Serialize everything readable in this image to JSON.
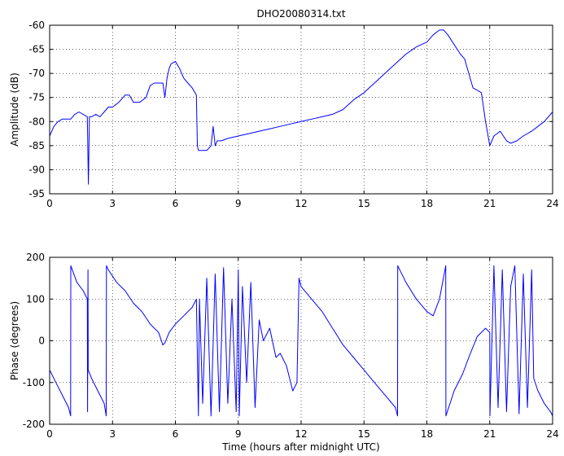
{
  "chart_data": [
    {
      "type": "line",
      "title": "DHO20080314.txt",
      "xlabel": "",
      "ylabel": "Amplitude (dB)",
      "xlim": [
        0,
        24
      ],
      "ylim": [
        -95,
        -60
      ],
      "xticks": [
        0,
        3,
        6,
        9,
        12,
        15,
        18,
        21,
        24
      ],
      "yticks": [
        -60,
        -65,
        -70,
        -75,
        -80,
        -85,
        -90,
        -95
      ],
      "grid": true,
      "line_color": "#0000ff",
      "series": [
        {
          "x": [
            0.0,
            0.2,
            0.4,
            0.6,
            0.8,
            1.0,
            1.2,
            1.4,
            1.6,
            1.8,
            1.85,
            1.9,
            2.0,
            2.2,
            2.4,
            2.6,
            2.8,
            3.0,
            3.3,
            3.6,
            3.8,
            4.0,
            4.3,
            4.6,
            4.8,
            5.0,
            5.2,
            5.4,
            5.5,
            5.6,
            5.7,
            5.8,
            6.0,
            6.2,
            6.4,
            6.6,
            6.8,
            7.0,
            7.05,
            7.1,
            7.3,
            7.5,
            7.7,
            7.8,
            7.9,
            8.0,
            8.2,
            8.5,
            9.0,
            9.5,
            10.0,
            10.5,
            11.0,
            11.5,
            12.0,
            12.5,
            13.0,
            13.5,
            14.0,
            14.5,
            15.0,
            15.5,
            16.0,
            16.5,
            17.0,
            17.5,
            18.0,
            18.3,
            18.6,
            18.8,
            19.0,
            19.3,
            19.6,
            19.8,
            20.0,
            20.2,
            20.4,
            20.6,
            20.8,
            21.0,
            21.2,
            21.5,
            21.8,
            22.0,
            22.3,
            22.6,
            23.0,
            23.3,
            23.6,
            24.0
          ],
          "y": [
            -83,
            -81,
            -80,
            -79.5,
            -79.5,
            -79.5,
            -78.5,
            -78,
            -78.5,
            -79,
            -93,
            -79,
            -79,
            -78.5,
            -79,
            -78,
            -77,
            -77,
            -76,
            -74.5,
            -74.5,
            -76,
            -76,
            -75,
            -72.5,
            -72,
            -72,
            -72,
            -75,
            -71,
            -69,
            -68,
            -67.5,
            -69,
            -71,
            -72,
            -73,
            -74.5,
            -85,
            -86,
            -86,
            -86,
            -85,
            -81,
            -85,
            -84,
            -84,
            -83.5,
            -83,
            -82.5,
            -82,
            -81.5,
            -81,
            -80.5,
            -80,
            -79.5,
            -79,
            -78.5,
            -77.5,
            -75.5,
            -74,
            -72,
            -70,
            -68,
            -66,
            -64.5,
            -63.5,
            -62,
            -61,
            -61,
            -62,
            -64,
            -66,
            -67,
            -70,
            -73,
            -73.5,
            -74,
            -80,
            -85,
            -83,
            -82,
            -84,
            -84.5,
            -84,
            -83,
            -82,
            -81,
            -80,
            -78
          ]
        }
      ]
    },
    {
      "type": "line",
      "title": "",
      "xlabel": "Time (hours after midnight UTC)",
      "ylabel": "Phase (degrees)",
      "xlim": [
        0,
        24
      ],
      "ylim": [
        -200,
        200
      ],
      "xticks": [
        0,
        3,
        6,
        9,
        12,
        15,
        18,
        21,
        24
      ],
      "yticks": [
        200,
        100,
        0,
        -100,
        -200
      ],
      "grid": true,
      "line_color": "#0000ff",
      "series": [
        {
          "x": [
            0.0,
            0.3,
            0.6,
            0.9,
            1.0,
            1.01,
            1.3,
            1.6,
            1.8,
            1.81,
            1.83,
            1.84,
            2.0,
            2.3,
            2.6,
            2.7,
            2.71,
            2.8,
            3.2,
            3.6,
            4.0,
            4.4,
            4.8,
            5.2,
            5.4,
            5.5,
            5.7,
            6.0,
            6.4,
            6.8,
            7.0,
            7.1,
            7.15,
            7.3,
            7.5,
            7.7,
            7.9,
            8.1,
            8.3,
            8.5,
            8.7,
            8.9,
            9.0,
            9.05,
            9.2,
            9.4,
            9.6,
            9.8,
            10.0,
            10.2,
            10.5,
            10.8,
            11.0,
            11.3,
            11.6,
            11.8,
            11.9,
            12.0,
            12.5,
            13.0,
            13.5,
            14.0,
            14.5,
            15.0,
            15.5,
            16.0,
            16.5,
            16.6,
            16.61,
            17.0,
            17.5,
            18.0,
            18.3,
            18.6,
            18.9,
            18.91,
            19.3,
            19.7,
            20.0,
            20.4,
            20.8,
            21.0,
            21.01,
            21.2,
            21.4,
            21.6,
            21.8,
            22.0,
            22.2,
            22.4,
            22.6,
            22.8,
            23.0,
            23.1,
            23.3,
            23.6,
            23.9,
            24.0
          ],
          "y": [
            -70,
            -100,
            -130,
            -160,
            -180,
            180,
            140,
            120,
            100,
            -170,
            170,
            -70,
            -90,
            -120,
            -150,
            -180,
            180,
            170,
            140,
            120,
            90,
            70,
            40,
            20,
            -10,
            -5,
            20,
            40,
            60,
            80,
            100,
            -180,
            100,
            -150,
            150,
            -180,
            160,
            -170,
            175,
            -150,
            100,
            -170,
            170,
            -180,
            130,
            -100,
            140,
            -160,
            50,
            0,
            30,
            -40,
            -30,
            -60,
            -120,
            -100,
            150,
            130,
            100,
            70,
            30,
            -10,
            -40,
            -70,
            -100,
            -130,
            -160,
            -180,
            180,
            140,
            100,
            70,
            60,
            100,
            180,
            -180,
            -120,
            -80,
            -40,
            10,
            30,
            20,
            -180,
            180,
            -160,
            170,
            -170,
            130,
            180,
            -175,
            160,
            -160,
            170,
            -90,
            -120,
            -150,
            -170,
            -180
          ]
        }
      ]
    }
  ]
}
